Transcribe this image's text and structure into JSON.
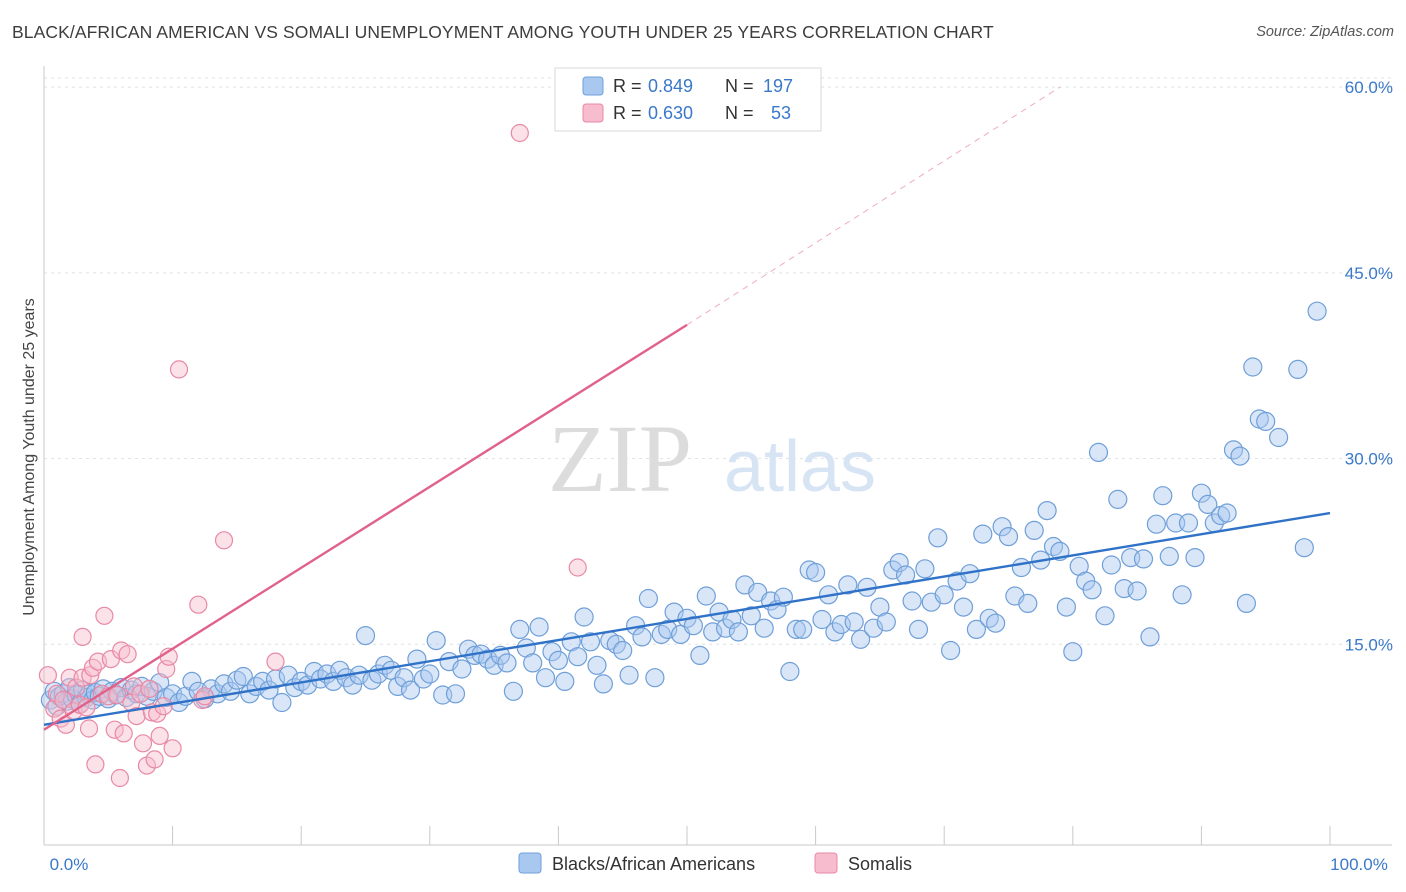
{
  "title": "BLACK/AFRICAN AMERICAN VS SOMALI UNEMPLOYMENT AMONG YOUTH UNDER 25 YEARS CORRELATION CHART",
  "source": "Source: ZipAtlas.com",
  "watermark": {
    "zip": "ZIP",
    "atlas": "atlas"
  },
  "colors": {
    "blue_fill": "#a8c8f0",
    "blue_stroke": "#6f9fd8",
    "blue_line": "#2f72c8",
    "pink_fill": "#f7bccd",
    "pink_stroke": "#e889a6",
    "pink_line": "#e0628a",
    "axis_text": "#3a78c9",
    "grid": "#dde1e6"
  },
  "legend": {
    "rows": [
      {
        "r_label": "R = ",
        "r_value": "0.849",
        "n_label": "N = ",
        "n_value": "197"
      },
      {
        "r_label": "R = ",
        "r_value": "0.630",
        "n_label": "N = ",
        "n_value": "53"
      }
    ]
  },
  "chart_data": {
    "type": "scatter",
    "title": "BLACK/AFRICAN AMERICAN VS SOMALI UNEMPLOYMENT AMONG YOUTH UNDER 25 YEARS CORRELATION CHART",
    "xlabel": "",
    "ylabel": "Unemployment Among Youth under 25 years",
    "xlim": [
      0,
      100
    ],
    "ylim": [
      0,
      63
    ],
    "x_tick_labels": [
      "0.0%",
      "100.0%"
    ],
    "y_ticks": [
      15,
      30,
      45,
      60
    ],
    "y_tick_labels": [
      "15.0%",
      "30.0%",
      "45.0%",
      "60.0%"
    ],
    "grid": true,
    "legend_position": "top-center",
    "series": [
      {
        "name": "Blacks/African Americans",
        "color": "#a8c8f0",
        "trend": {
          "x": [
            0,
            100
          ],
          "y": [
            8.5,
            25.6
          ]
        },
        "points": [
          [
            0.5,
            10.5
          ],
          [
            0.8,
            11.2
          ],
          [
            1.0,
            10.0
          ],
          [
            1.2,
            10.8
          ],
          [
            1.5,
            11.0
          ],
          [
            1.8,
            10.4
          ],
          [
            2.0,
            11.5
          ],
          [
            2.2,
            10.6
          ],
          [
            2.5,
            10.9
          ],
          [
            2.8,
            10.2
          ],
          [
            3.0,
            11.3
          ],
          [
            3.3,
            10.7
          ],
          [
            3.5,
            11.0
          ],
          [
            3.8,
            10.5
          ],
          [
            4.0,
            11.1
          ],
          [
            4.3,
            10.8
          ],
          [
            4.6,
            11.4
          ],
          [
            5.0,
            10.6
          ],
          [
            5.3,
            11.2
          ],
          [
            5.6,
            10.9
          ],
          [
            6.0,
            11.5
          ],
          [
            6.4,
            10.7
          ],
          [
            6.8,
            11.3
          ],
          [
            7.2,
            11.0
          ],
          [
            7.6,
            11.6
          ],
          [
            8.0,
            10.8
          ],
          [
            8.5,
            11.2
          ],
          [
            9.0,
            11.9
          ],
          [
            9.5,
            10.7
          ],
          [
            10.0,
            11.0
          ],
          [
            10.5,
            10.3
          ],
          [
            11.0,
            10.8
          ],
          [
            11.5,
            12.0
          ],
          [
            12.0,
            11.2
          ],
          [
            12.5,
            10.6
          ],
          [
            13.0,
            11.4
          ],
          [
            13.5,
            11.0
          ],
          [
            14.0,
            11.8
          ],
          [
            14.5,
            11.2
          ],
          [
            15.0,
            12.1
          ],
          [
            15.5,
            12.4
          ],
          [
            16.0,
            11.0
          ],
          [
            16.5,
            11.6
          ],
          [
            17.0,
            12.0
          ],
          [
            17.5,
            11.3
          ],
          [
            18.0,
            12.2
          ],
          [
            18.5,
            10.3
          ],
          [
            19.0,
            12.5
          ],
          [
            19.5,
            11.5
          ],
          [
            20.0,
            12.0
          ],
          [
            20.5,
            11.7
          ],
          [
            21.0,
            12.8
          ],
          [
            21.5,
            12.2
          ],
          [
            22.0,
            12.6
          ],
          [
            22.5,
            12.0
          ],
          [
            23.0,
            12.9
          ],
          [
            23.5,
            12.3
          ],
          [
            24.0,
            11.7
          ],
          [
            24.5,
            12.5
          ],
          [
            25.0,
            15.7
          ],
          [
            25.5,
            12.1
          ],
          [
            26.0,
            12.6
          ],
          [
            26.5,
            13.3
          ],
          [
            27.0,
            12.9
          ],
          [
            27.5,
            11.6
          ],
          [
            28.0,
            12.3
          ],
          [
            28.5,
            11.3
          ],
          [
            29.0,
            13.8
          ],
          [
            29.5,
            12.2
          ],
          [
            30.0,
            12.6
          ],
          [
            30.5,
            15.3
          ],
          [
            31.0,
            10.9
          ],
          [
            31.5,
            13.6
          ],
          [
            32.0,
            11.0
          ],
          [
            32.5,
            13.0
          ],
          [
            33.0,
            14.6
          ],
          [
            33.5,
            14.1
          ],
          [
            34.0,
            14.2
          ],
          [
            34.5,
            13.8
          ],
          [
            35.0,
            13.3
          ],
          [
            35.5,
            14.1
          ],
          [
            36.0,
            13.5
          ],
          [
            36.5,
            11.2
          ],
          [
            37.0,
            16.2
          ],
          [
            37.5,
            14.7
          ],
          [
            38.0,
            13.5
          ],
          [
            38.5,
            16.4
          ],
          [
            39.0,
            12.3
          ],
          [
            39.5,
            14.4
          ],
          [
            40.0,
            13.7
          ],
          [
            40.5,
            12.0
          ],
          [
            41.0,
            15.2
          ],
          [
            41.5,
            14.0
          ],
          [
            42.0,
            17.2
          ],
          [
            42.5,
            15.2
          ],
          [
            43.0,
            13.3
          ],
          [
            43.5,
            11.8
          ],
          [
            44.0,
            15.3
          ],
          [
            44.5,
            15.0
          ],
          [
            45.0,
            14.5
          ],
          [
            45.5,
            12.5
          ],
          [
            46.0,
            16.5
          ],
          [
            46.5,
            15.6
          ],
          [
            47.0,
            18.7
          ],
          [
            47.5,
            12.3
          ],
          [
            48.0,
            15.8
          ],
          [
            48.5,
            16.2
          ],
          [
            49.0,
            17.6
          ],
          [
            49.5,
            15.8
          ],
          [
            50.0,
            17.1
          ],
          [
            50.5,
            16.5
          ],
          [
            51.0,
            14.1
          ],
          [
            51.5,
            18.9
          ],
          [
            52.0,
            16.0
          ],
          [
            52.5,
            17.6
          ],
          [
            53.0,
            16.3
          ],
          [
            53.5,
            17.0
          ],
          [
            54.0,
            16.0
          ],
          [
            54.5,
            19.8
          ],
          [
            55.0,
            17.3
          ],
          [
            55.5,
            19.2
          ],
          [
            56.0,
            16.3
          ],
          [
            56.5,
            18.5
          ],
          [
            57.0,
            17.8
          ],
          [
            57.5,
            18.8
          ],
          [
            58.0,
            12.8
          ],
          [
            58.5,
            16.2
          ],
          [
            59.0,
            16.2
          ],
          [
            59.5,
            21.0
          ],
          [
            60.0,
            20.8
          ],
          [
            60.5,
            17.0
          ],
          [
            61.0,
            19.0
          ],
          [
            61.5,
            16.0
          ],
          [
            62.0,
            16.6
          ],
          [
            62.5,
            19.8
          ],
          [
            63.0,
            16.8
          ],
          [
            63.5,
            15.4
          ],
          [
            64.0,
            19.6
          ],
          [
            64.5,
            16.3
          ],
          [
            65.0,
            18.0
          ],
          [
            65.5,
            16.8
          ],
          [
            66.0,
            21.0
          ],
          [
            66.5,
            21.6
          ],
          [
            67.0,
            20.6
          ],
          [
            67.5,
            18.5
          ],
          [
            68.0,
            16.2
          ],
          [
            68.5,
            21.1
          ],
          [
            69.0,
            18.4
          ],
          [
            69.5,
            23.6
          ],
          [
            70.0,
            19.0
          ],
          [
            70.5,
            14.5
          ],
          [
            71.0,
            20.1
          ],
          [
            71.5,
            18.0
          ],
          [
            72.0,
            20.7
          ],
          [
            72.5,
            16.2
          ],
          [
            73.0,
            23.9
          ],
          [
            73.5,
            17.1
          ],
          [
            74.0,
            16.7
          ],
          [
            74.5,
            24.5
          ],
          [
            75.0,
            23.7
          ],
          [
            75.5,
            18.9
          ],
          [
            76.0,
            21.2
          ],
          [
            76.5,
            18.3
          ],
          [
            77.0,
            24.2
          ],
          [
            77.5,
            21.8
          ],
          [
            78.0,
            25.8
          ],
          [
            78.5,
            22.9
          ],
          [
            79.0,
            22.5
          ],
          [
            79.5,
            18.0
          ],
          [
            80.0,
            14.4
          ],
          [
            80.5,
            21.3
          ],
          [
            81.0,
            20.1
          ],
          [
            81.5,
            19.4
          ],
          [
            82.0,
            30.5
          ],
          [
            82.5,
            17.3
          ],
          [
            83.0,
            21.4
          ],
          [
            83.5,
            26.7
          ],
          [
            84.0,
            19.5
          ],
          [
            84.5,
            22.0
          ],
          [
            85.0,
            19.3
          ],
          [
            85.5,
            21.9
          ],
          [
            86.0,
            15.6
          ],
          [
            86.5,
            24.7
          ],
          [
            87.0,
            27.0
          ],
          [
            87.5,
            22.1
          ],
          [
            88.0,
            24.8
          ],
          [
            88.5,
            19.0
          ],
          [
            89.0,
            24.8
          ],
          [
            89.5,
            22.0
          ],
          [
            90.0,
            27.2
          ],
          [
            90.5,
            26.3
          ],
          [
            91.0,
            24.8
          ],
          [
            91.5,
            25.4
          ],
          [
            92.0,
            25.6
          ],
          [
            92.5,
            30.7
          ],
          [
            93.0,
            30.2
          ],
          [
            93.5,
            18.3
          ],
          [
            94.0,
            37.4
          ],
          [
            94.5,
            33.2
          ],
          [
            95.0,
            33.0
          ],
          [
            96.0,
            31.7
          ],
          [
            97.5,
            37.2
          ],
          [
            98.0,
            22.8
          ],
          [
            99.0,
            41.9
          ]
        ]
      },
      {
        "name": "Somalis",
        "color": "#f7bccd",
        "trend": {
          "x": [
            0,
            50
          ],
          "y": [
            8.1,
            40.8
          ]
        },
        "trend_extension": {
          "x": [
            50,
            79
          ],
          "y": [
            40.8,
            60.0
          ]
        },
        "points": [
          [
            0.3,
            12.5
          ],
          [
            0.8,
            9.8
          ],
          [
            1.0,
            11.0
          ],
          [
            1.3,
            9.0
          ],
          [
            1.5,
            10.5
          ],
          [
            1.7,
            8.5
          ],
          [
            2.0,
            12.3
          ],
          [
            2.3,
            9.6
          ],
          [
            2.5,
            11.5
          ],
          [
            2.8,
            10.1
          ],
          [
            3.0,
            12.3
          ],
          [
            3.0,
            15.6
          ],
          [
            3.3,
            9.9
          ],
          [
            3.5,
            8.2
          ],
          [
            3.6,
            12.5
          ],
          [
            3.8,
            13.1
          ],
          [
            4.0,
            5.3
          ],
          [
            4.2,
            13.6
          ],
          [
            4.5,
            11.0
          ],
          [
            4.7,
            17.3
          ],
          [
            5.0,
            10.8
          ],
          [
            5.2,
            13.8
          ],
          [
            5.5,
            8.1
          ],
          [
            5.7,
            10.9
          ],
          [
            5.9,
            4.2
          ],
          [
            6.0,
            14.5
          ],
          [
            6.2,
            7.8
          ],
          [
            6.5,
            14.2
          ],
          [
            6.8,
            10.3
          ],
          [
            7.0,
            11.6
          ],
          [
            7.2,
            9.2
          ],
          [
            7.5,
            11.0
          ],
          [
            7.7,
            7.0
          ],
          [
            8.0,
            5.2
          ],
          [
            8.2,
            11.4
          ],
          [
            8.4,
            9.5
          ],
          [
            8.6,
            5.7
          ],
          [
            8.8,
            9.4
          ],
          [
            9.0,
            7.6
          ],
          [
            9.3,
            10.0
          ],
          [
            9.5,
            13.0
          ],
          [
            9.7,
            14.0
          ],
          [
            10.0,
            6.6
          ],
          [
            10.5,
            37.2
          ],
          [
            12.0,
            18.2
          ],
          [
            12.3,
            10.5
          ],
          [
            12.5,
            10.8
          ],
          [
            14.0,
            23.4
          ],
          [
            18.0,
            13.6
          ],
          [
            37.0,
            56.3
          ],
          [
            41.5,
            21.2
          ]
        ]
      }
    ]
  }
}
